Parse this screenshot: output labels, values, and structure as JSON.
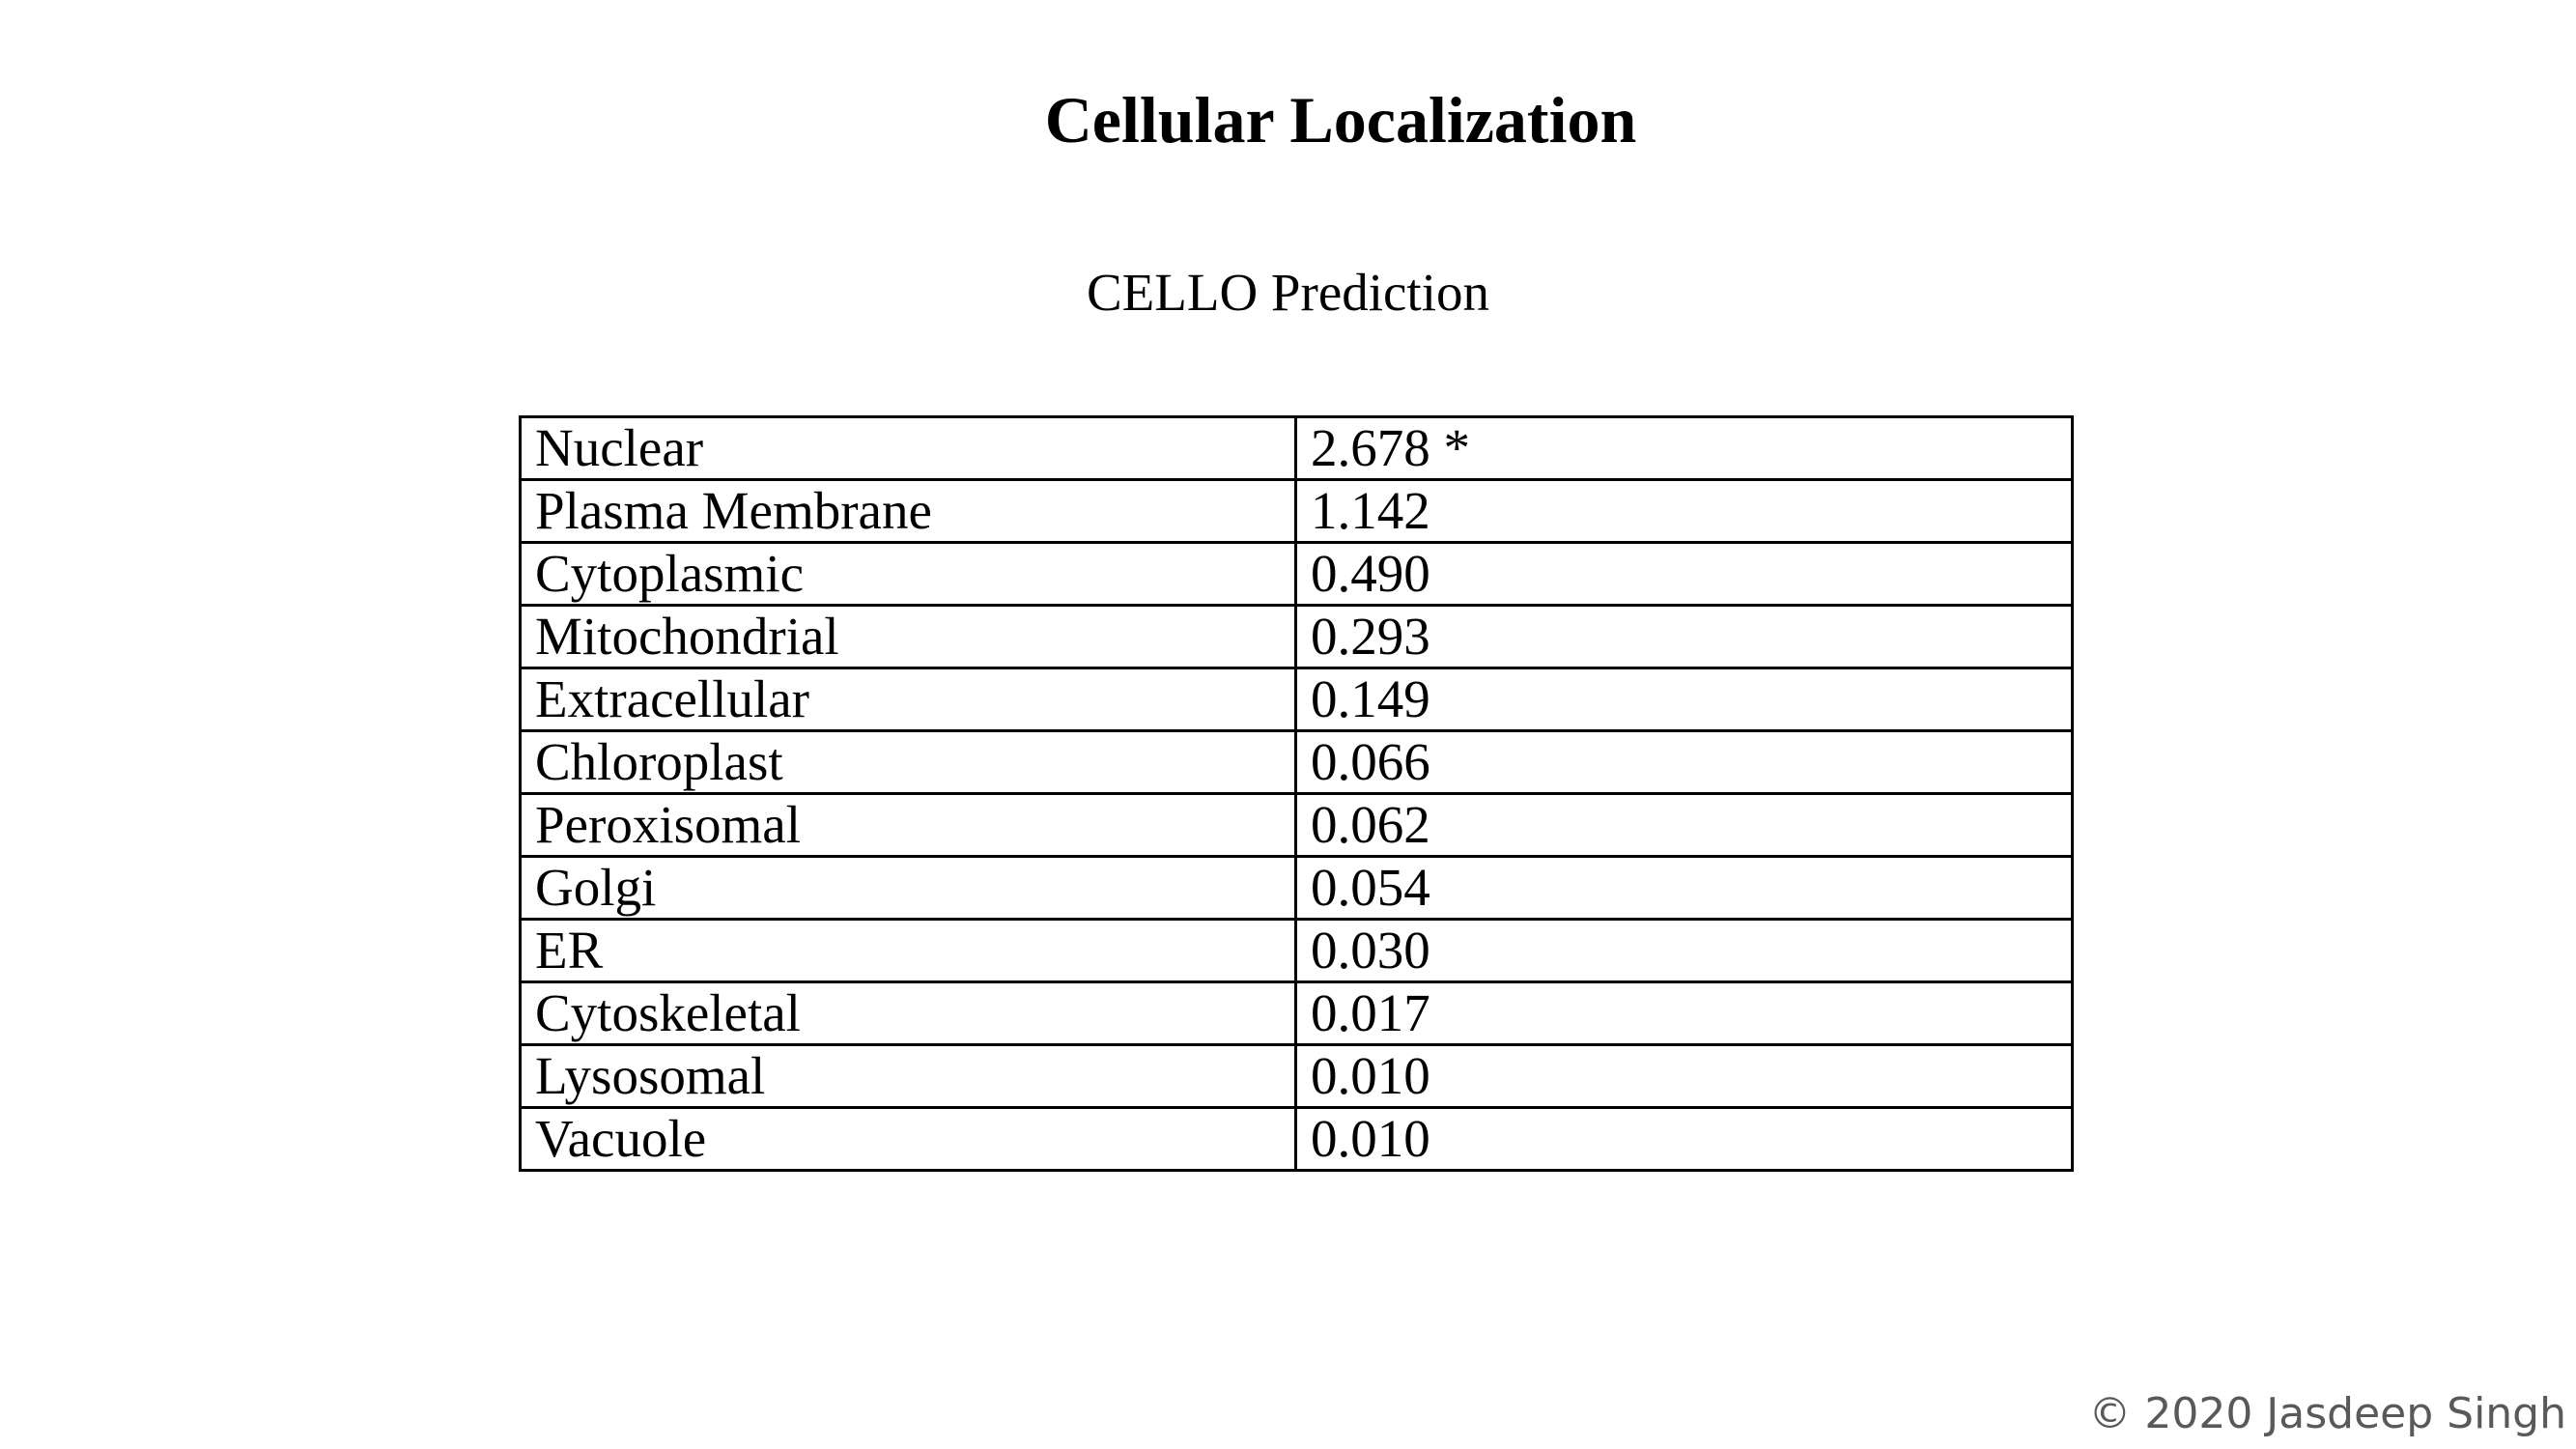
{
  "slide": {
    "title": "Cellular Localization",
    "subtitle": "CELLO Prediction",
    "footer": "© 2020 Jasdeep Singh"
  },
  "table": {
    "rows": [
      {
        "location": "Nuclear",
        "score": "2.678 *"
      },
      {
        "location": "Plasma Membrane",
        "score": "1.142"
      },
      {
        "location": "Cytoplasmic",
        "score": "0.490"
      },
      {
        "location": "Mitochondrial",
        "score": "0.293"
      },
      {
        "location": "Extracellular",
        "score": "0.149"
      },
      {
        "location": "Chloroplast",
        "score": "0.066"
      },
      {
        "location": "Peroxisomal",
        "score": "0.062"
      },
      {
        "location": "Golgi",
        "score": "0.054"
      },
      {
        "location": "ER",
        "score": "0.030"
      },
      {
        "location": "Cytoskeletal",
        "score": "0.017"
      },
      {
        "location": "Lysosomal",
        "score": "0.010"
      },
      {
        "location": "Vacuole",
        "score": "0.010"
      }
    ]
  },
  "colors": {
    "text": "#000000",
    "footer_text": "#595959",
    "background": "#ffffff",
    "border": "#000000"
  }
}
